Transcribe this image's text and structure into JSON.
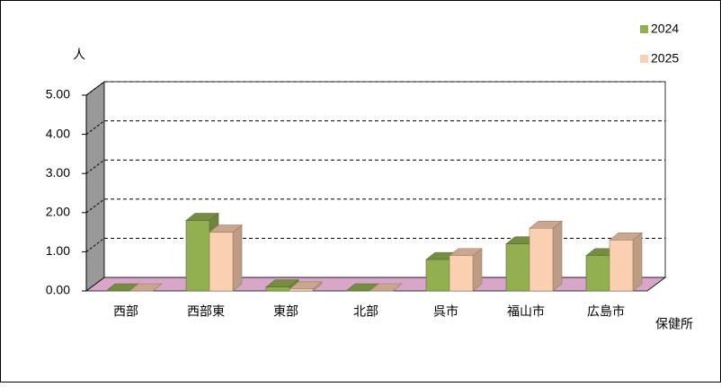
{
  "chart_data": {
    "type": "bar3d",
    "y_label": "人",
    "x_label": "保健所",
    "categories": [
      "西部",
      "西部東",
      "東部",
      "北部",
      "呉市",
      "福山市",
      "広島市"
    ],
    "series": [
      {
        "name": "2024",
        "color": "#92b050",
        "values": [
          0,
          1.8,
          0.1,
          0,
          0.8,
          1.2,
          0.9
        ]
      },
      {
        "name": "2025",
        "color": "#fbd0b0",
        "values": [
          0,
          1.5,
          0.05,
          0,
          0.9,
          1.6,
          1.3
        ]
      }
    ],
    "ylim": [
      0,
      5
    ],
    "yticks": [
      {
        "value": 0,
        "label": "0.00"
      },
      {
        "value": 1,
        "label": "1.00"
      },
      {
        "value": 2,
        "label": "2.00"
      },
      {
        "value": 3,
        "label": "3.00"
      },
      {
        "value": 4,
        "label": "4.00"
      },
      {
        "value": 5,
        "label": "5.00"
      }
    ],
    "grid": true
  }
}
